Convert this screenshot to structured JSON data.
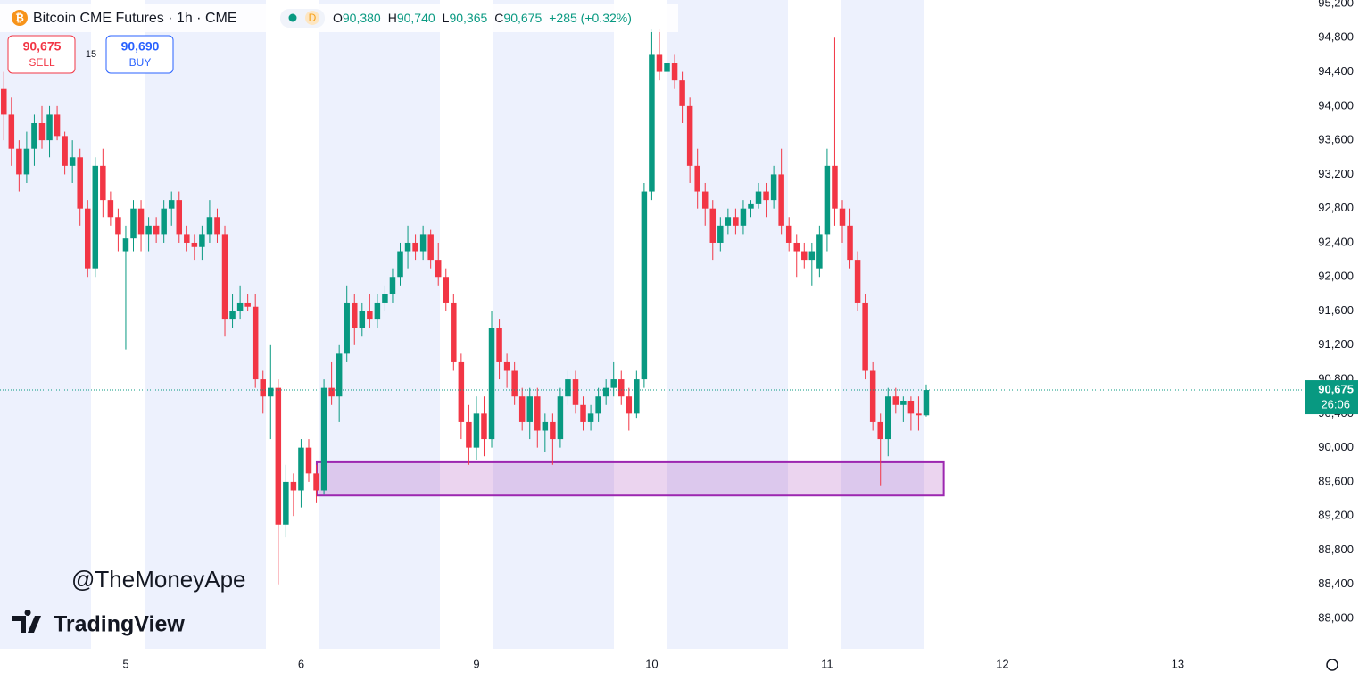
{
  "chart_data": {
    "type": "candlestick",
    "header": {
      "symbol": "Bitcoin CME Futures · 1h · CME",
      "badge": "D",
      "ohlc": [
        {
          "key": "O",
          "text": "90,380"
        },
        {
          "key": "H",
          "text": "90,740"
        },
        {
          "key": "L",
          "text": "90,365"
        },
        {
          "key": "C",
          "text": "90,675"
        }
      ],
      "change": "+285 (+0.32%)"
    },
    "trade": {
      "sell_price": "90,675",
      "sell": "SELL",
      "spread": "15",
      "buy_price": "90,690",
      "buy": "BUY"
    },
    "watermark": "@TheMoneyApe",
    "brand": "TradingView",
    "up_color": "#089981",
    "down_color": "#f23645",
    "ohlc": [
      [
        94200,
        94400,
        93600,
        93900
      ],
      [
        93900,
        94100,
        93300,
        93500
      ],
      [
        93500,
        93600,
        93000,
        93200
      ],
      [
        93200,
        93700,
        93100,
        93500
      ],
      [
        93500,
        93900,
        93300,
        93800
      ],
      [
        93800,
        94000,
        93500,
        93600
      ],
      [
        93600,
        94000,
        93400,
        93900
      ],
      [
        93900,
        94000,
        93600,
        93650
      ],
      [
        93650,
        93700,
        93200,
        93300
      ],
      [
        93300,
        93600,
        93100,
        93400
      ],
      [
        93400,
        93500,
        92600,
        92800
      ],
      [
        92800,
        92900,
        92000,
        92100
      ],
      [
        92100,
        93400,
        92000,
        93300
      ],
      [
        93300,
        93500,
        92700,
        92900
      ],
      [
        92900,
        93000,
        92600,
        92700
      ],
      [
        92700,
        92800,
        92300,
        92500
      ],
      [
        92300,
        92600,
        91150,
        92450
      ],
      [
        92450,
        92900,
        92300,
        92800
      ],
      [
        92800,
        92900,
        92300,
        92500
      ],
      [
        92500,
        92700,
        92300,
        92600
      ],
      [
        92600,
        92700,
        92400,
        92500
      ],
      [
        92500,
        92900,
        92400,
        92800
      ],
      [
        92800,
        93000,
        92600,
        92900
      ],
      [
        92900,
        93000,
        92400,
        92500
      ],
      [
        92500,
        92600,
        92300,
        92400
      ],
      [
        92400,
        92500,
        92200,
        92350
      ],
      [
        92350,
        92600,
        92200,
        92500
      ],
      [
        92500,
        92900,
        92400,
        92700
      ],
      [
        92700,
        92800,
        92400,
        92500
      ],
      [
        92500,
        92600,
        91300,
        91500
      ],
      [
        91500,
        91800,
        91400,
        91600
      ],
      [
        91600,
        91900,
        91500,
        91700
      ],
      [
        91700,
        91800,
        91600,
        91650
      ],
      [
        91650,
        91800,
        90700,
        90800
      ],
      [
        90800,
        90900,
        90400,
        90600
      ],
      [
        90600,
        91200,
        90100,
        90700
      ],
      [
        90700,
        90800,
        88400,
        89100
      ],
      [
        89100,
        89800,
        88950,
        89600
      ],
      [
        89600,
        89700,
        89200,
        89500
      ],
      [
        89500,
        90100,
        89300,
        90000
      ],
      [
        90000,
        90100,
        89600,
        89700
      ],
      [
        89700,
        89800,
        89350,
        89500
      ],
      [
        89500,
        90800,
        89450,
        90700
      ],
      [
        90700,
        91000,
        90500,
        90600
      ],
      [
        90600,
        91200,
        90300,
        91100
      ],
      [
        91100,
        91900,
        91000,
        91700
      ],
      [
        91700,
        91800,
        91200,
        91400
      ],
      [
        91400,
        91700,
        91300,
        91600
      ],
      [
        91600,
        91800,
        91400,
        91500
      ],
      [
        91500,
        91800,
        91400,
        91700
      ],
      [
        91700,
        91900,
        91600,
        91800
      ],
      [
        91800,
        92100,
        91700,
        92000
      ],
      [
        92000,
        92400,
        91900,
        92300
      ],
      [
        92300,
        92600,
        92100,
        92400
      ],
      [
        92400,
        92500,
        92200,
        92300
      ],
      [
        92300,
        92600,
        92200,
        92500
      ],
      [
        92500,
        92550,
        92100,
        92200
      ],
      [
        92200,
        92400,
        91900,
        92000
      ],
      [
        92000,
        92100,
        91600,
        91700
      ],
      [
        91700,
        91800,
        90900,
        91000
      ],
      [
        91000,
        91100,
        90100,
        90300
      ],
      [
        90300,
        90500,
        89800,
        90000
      ],
      [
        90000,
        90600,
        89850,
        90400
      ],
      [
        90400,
        90600,
        89900,
        90100
      ],
      [
        90100,
        91600,
        90000,
        91400
      ],
      [
        91400,
        91500,
        90800,
        91000
      ],
      [
        91000,
        91100,
        90700,
        90900
      ],
      [
        90900,
        91000,
        90500,
        90600
      ],
      [
        90600,
        90700,
        90200,
        90300
      ],
      [
        90300,
        90700,
        90100,
        90600
      ],
      [
        90600,
        90700,
        90000,
        90200
      ],
      [
        90200,
        90400,
        89950,
        90300
      ],
      [
        90300,
        90400,
        89800,
        90100
      ],
      [
        90100,
        90700,
        90000,
        90600
      ],
      [
        90600,
        90900,
        90500,
        90800
      ],
      [
        90800,
        90900,
        90400,
        90500
      ],
      [
        90500,
        90600,
        90200,
        90300
      ],
      [
        90300,
        90500,
        90200,
        90400
      ],
      [
        90400,
        90700,
        90300,
        90600
      ],
      [
        90600,
        90800,
        90500,
        90700
      ],
      [
        90700,
        91000,
        90600,
        90800
      ],
      [
        90800,
        90900,
        90500,
        90600
      ],
      [
        90600,
        90700,
        90200,
        90400
      ],
      [
        90400,
        90900,
        90350,
        90800
      ],
      [
        90800,
        93100,
        90700,
        93000
      ],
      [
        93000,
        94900,
        92900,
        94600
      ],
      [
        94600,
        94900,
        94300,
        94400
      ],
      [
        94400,
        94700,
        94200,
        94500
      ],
      [
        94500,
        94600,
        94200,
        94300
      ],
      [
        94300,
        94400,
        93800,
        94000
      ],
      [
        94000,
        94100,
        93100,
        93300
      ],
      [
        93300,
        93500,
        92800,
        93000
      ],
      [
        93000,
        93100,
        92600,
        92800
      ],
      [
        92800,
        92900,
        92200,
        92400
      ],
      [
        92400,
        92700,
        92300,
        92600
      ],
      [
        92600,
        92800,
        92500,
        92700
      ],
      [
        92700,
        92800,
        92500,
        92600
      ],
      [
        92600,
        92900,
        92500,
        92800
      ],
      [
        92800,
        92900,
        92700,
        92850
      ],
      [
        92850,
        93100,
        92800,
        93000
      ],
      [
        93000,
        93100,
        92700,
        92900
      ],
      [
        92900,
        93300,
        92800,
        93200
      ],
      [
        93200,
        93500,
        92500,
        92600
      ],
      [
        92600,
        92700,
        92300,
        92400
      ],
      [
        92400,
        92500,
        92000,
        92300
      ],
      [
        92300,
        92400,
        92100,
        92200
      ],
      [
        92200,
        92400,
        91900,
        92300
      ],
      [
        92100,
        92600,
        92000,
        92500
      ],
      [
        92500,
        93500,
        92300,
        93300
      ],
      [
        93300,
        94800,
        92600,
        92800
      ],
      [
        92800,
        92900,
        92400,
        92600
      ],
      [
        92600,
        92800,
        92100,
        92200
      ],
      [
        92200,
        92300,
        91600,
        91700
      ],
      [
        91700,
        91800,
        90800,
        90900
      ],
      [
        90900,
        91000,
        90200,
        90300
      ],
      [
        90300,
        90400,
        89550,
        90100
      ],
      [
        90100,
        90700,
        89900,
        90600
      ],
      [
        90600,
        90700,
        90400,
        90500
      ],
      [
        90500,
        90600,
        90300,
        90550
      ],
      [
        90550,
        90600,
        90200,
        90400
      ],
      [
        90400,
        90600,
        90200,
        90380
      ],
      [
        90380,
        90740,
        90365,
        90675
      ]
    ],
    "zone": {
      "low": 89440,
      "high": 89830,
      "from": 41.05,
      "to": 123.3,
      "color": "#9c27b0"
    },
    "last_price": {
      "value": 90675,
      "label": "90,675"
    },
    "countdown": "26:06",
    "xlim": [
      -0.5,
      170.4
    ],
    "xticks": [
      {
        "value": 16,
        "label": "5"
      },
      {
        "value": 39,
        "label": "6"
      },
      {
        "value": 62,
        "label": "9"
      },
      {
        "value": 85,
        "label": "10"
      },
      {
        "value": 108,
        "label": "11"
      },
      {
        "value": 131,
        "label": "12"
      },
      {
        "value": 154,
        "label": "13"
      }
    ],
    "ylim": [
      87645,
      95242
    ],
    "yticks": [
      {
        "value": 88000,
        "label": "88,000"
      },
      {
        "value": 88400,
        "label": "88,400"
      },
      {
        "value": 88800,
        "label": "88,800"
      },
      {
        "value": 89200,
        "label": "89,200"
      },
      {
        "value": 89600,
        "label": "89,600"
      },
      {
        "value": 90000,
        "label": "90,000"
      },
      {
        "value": 90400,
        "label": "90,400"
      },
      {
        "value": 90800,
        "label": "90,800"
      },
      {
        "value": 91200,
        "label": "91,200"
      },
      {
        "value": 91600,
        "label": "91,600"
      },
      {
        "value": 92000,
        "label": "92,000"
      },
      {
        "value": 92400,
        "label": "92,400"
      },
      {
        "value": 92800,
        "label": "92,800"
      },
      {
        "value": 93200,
        "label": "93,200"
      },
      {
        "value": 93600,
        "label": "93,600"
      },
      {
        "value": 94000,
        "label": "94,000"
      },
      {
        "value": 94400,
        "label": "94,400"
      },
      {
        "value": 94800,
        "label": "94,800"
      },
      {
        "value": 95200,
        "label": "95,200"
      }
    ]
  }
}
